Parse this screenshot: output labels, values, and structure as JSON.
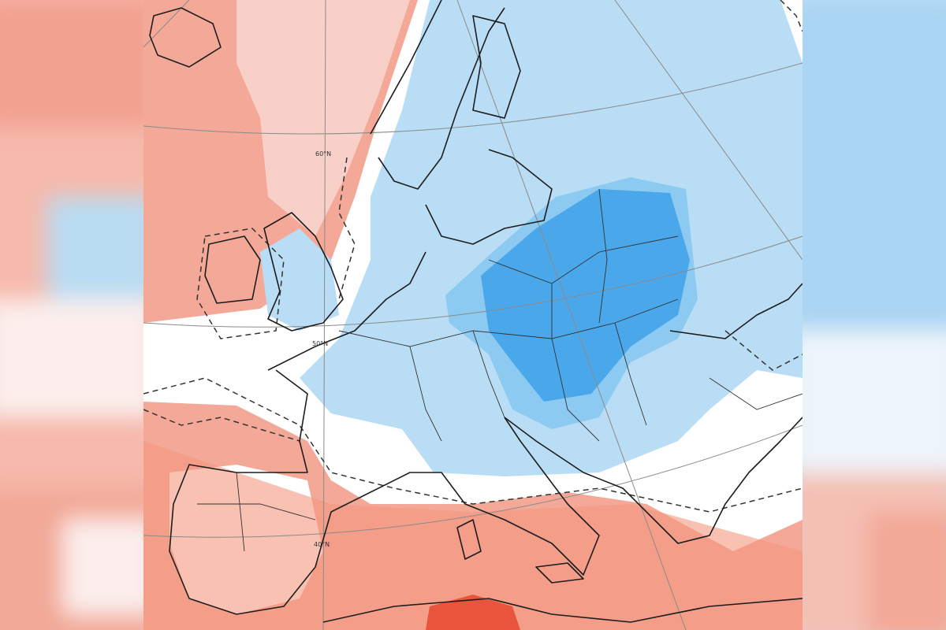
{
  "map": {
    "latitude_labels": [
      "60°N",
      "50°N",
      "40°N"
    ]
  }
}
